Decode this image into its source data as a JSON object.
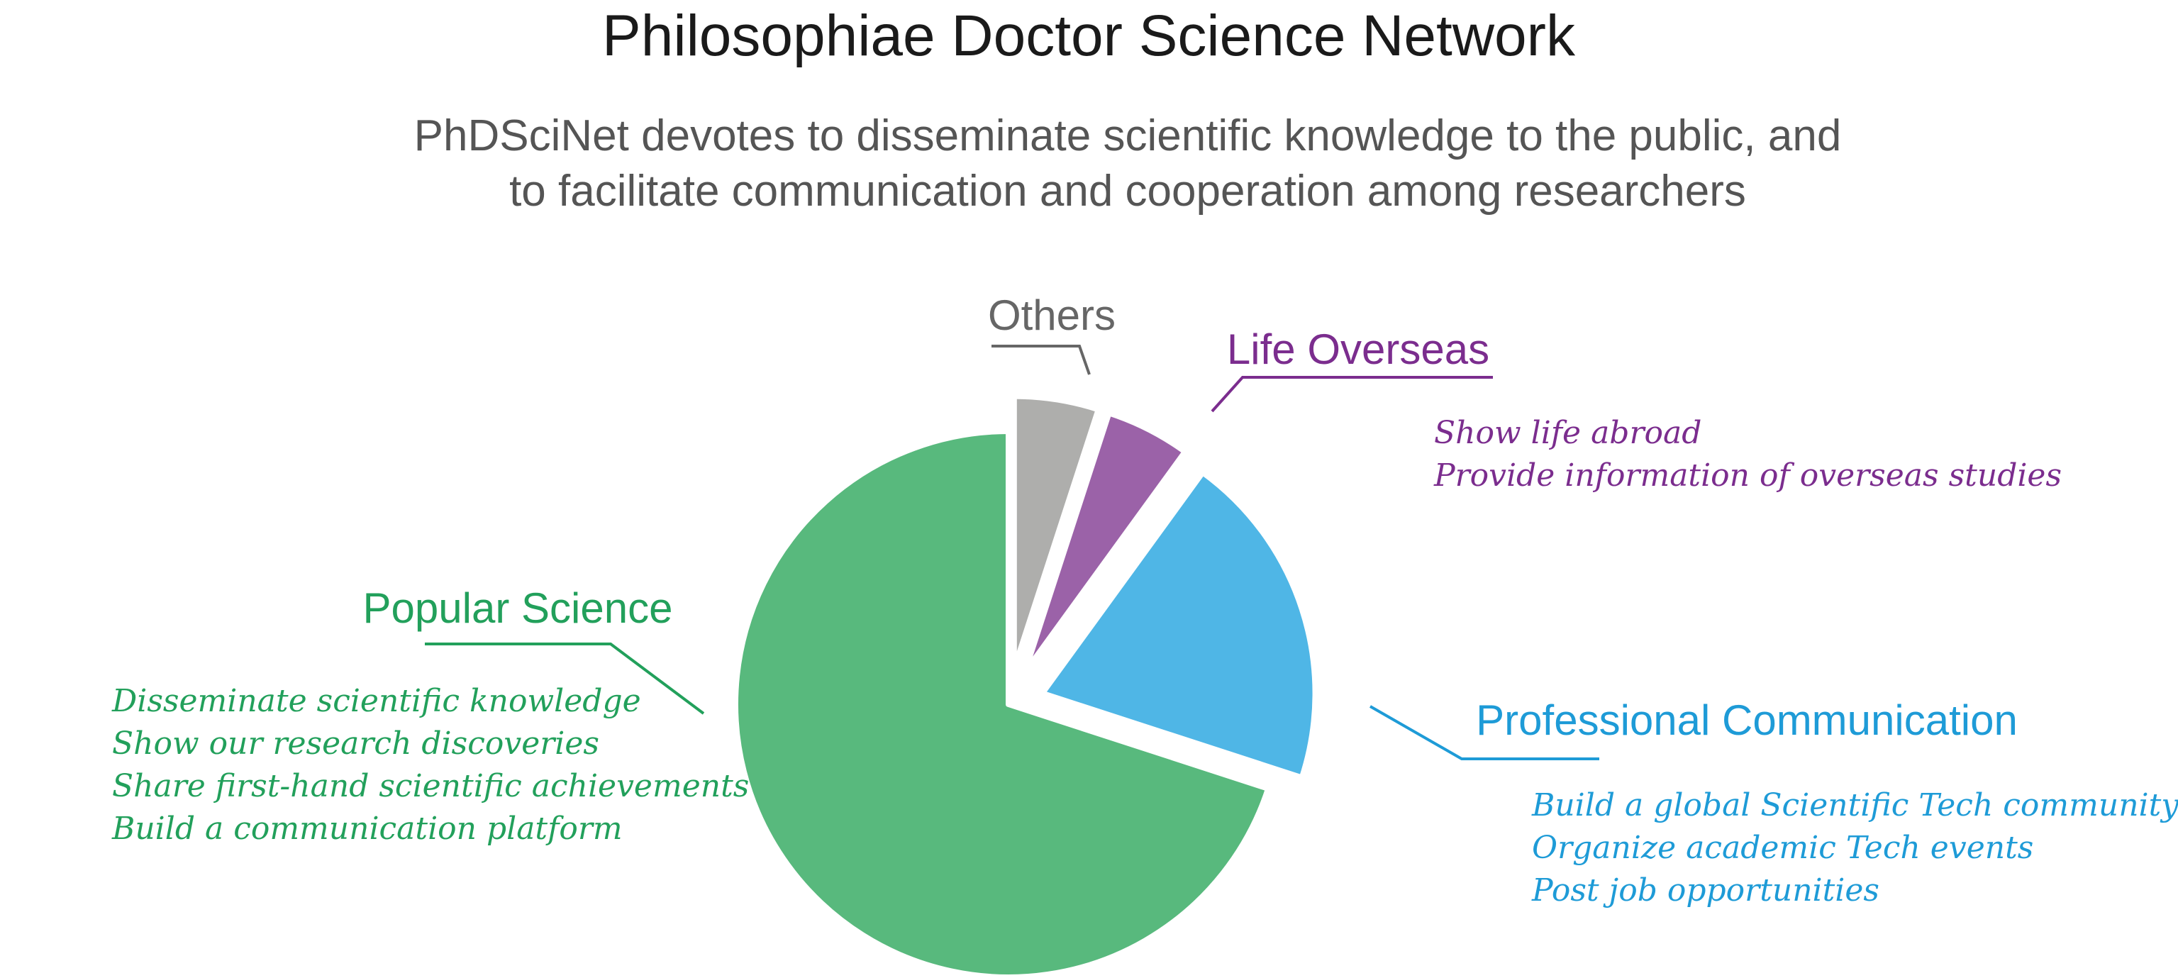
{
  "header": {
    "title": "Philosophiae Doctor Science Network",
    "subtitle_lines": [
      "PhDSciNet devotes to disseminate scientific knowledge to the public, and",
      "to facilitate communication and cooperation among researchers"
    ]
  },
  "chart_data": {
    "type": "pie",
    "title": "Philosophiae Doctor Science Network",
    "slices": [
      {
        "label": "Others",
        "value": 5,
        "color": "#aeaeac",
        "exploded": true,
        "description": []
      },
      {
        "label": "Life Overseas",
        "value": 5,
        "color": "#9b62a8",
        "exploded": true,
        "description": [
          "Show life abroad",
          "Provide information of overseas studies"
        ]
      },
      {
        "label": "Professional Communication",
        "value": 20,
        "color": "#4fb6e6",
        "exploded": true,
        "description": [
          "Build a global Scientific Tech community",
          "Organize academic Tech events",
          "Post job opportunities"
        ]
      },
      {
        "label": "Popular Science",
        "value": 70,
        "color": "#58b97d",
        "exploded": false,
        "description": [
          "Disseminate scientific knowledge",
          "Show our research discoveries",
          "Share first-hand scientific achievements",
          "Build a communication platform"
        ]
      }
    ],
    "label_colors": {
      "Others": "#666666",
      "Life Overseas": "#7b2d8e",
      "Professional Communication": "#1e9bd7",
      "Popular Science": "#22a05b"
    }
  }
}
